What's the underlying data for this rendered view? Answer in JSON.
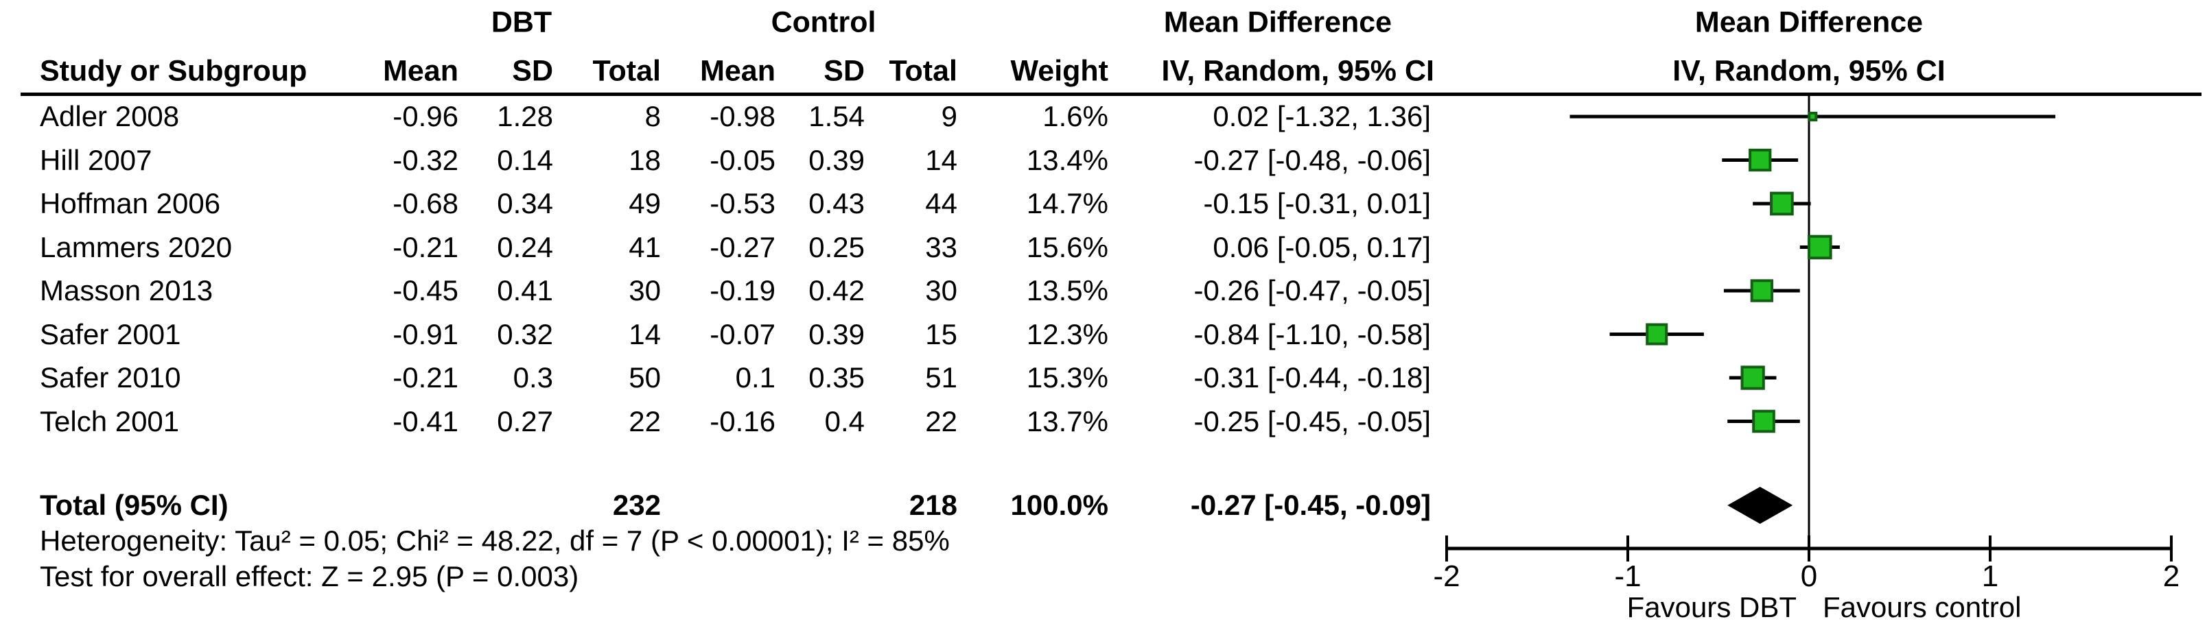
{
  "chart_data": {
    "type": "forest",
    "header": {
      "study_col": "Study or Subgroup",
      "group1": "DBT",
      "group2": "Control",
      "md_table": "Mean Difference",
      "md_plot": "Mean Difference",
      "model_table": "IV, Random, 95% CI",
      "model_plot": "IV, Random, 95% CI",
      "cols": [
        "Mean",
        "SD",
        "Total",
        "Mean",
        "SD",
        "Total",
        "Weight"
      ]
    },
    "studies": [
      {
        "name": "Adler 2008",
        "mean_dbt": "-0.96",
        "sd_dbt": "1.28",
        "total_dbt": "8",
        "mean_ctl": "-0.98",
        "sd_ctl": "1.54",
        "total_ctl": "9",
        "weight": "1.6%",
        "weight_pct": 1.6,
        "ci_text": "0.02 [-1.32, 1.36]",
        "est": 0.02,
        "lo": -1.32,
        "hi": 1.36
      },
      {
        "name": "Hill 2007",
        "mean_dbt": "-0.32",
        "sd_dbt": "0.14",
        "total_dbt": "18",
        "mean_ctl": "-0.05",
        "sd_ctl": "0.39",
        "total_ctl": "14",
        "weight": "13.4%",
        "weight_pct": 13.4,
        "ci_text": "-0.27 [-0.48, -0.06]",
        "est": -0.27,
        "lo": -0.48,
        "hi": -0.06
      },
      {
        "name": "Hoffman 2006",
        "mean_dbt": "-0.68",
        "sd_dbt": "0.34",
        "total_dbt": "49",
        "mean_ctl": "-0.53",
        "sd_ctl": "0.43",
        "total_ctl": "44",
        "weight": "14.7%",
        "weight_pct": 14.7,
        "ci_text": "-0.15 [-0.31, 0.01]",
        "est": -0.15,
        "lo": -0.31,
        "hi": 0.01
      },
      {
        "name": "Lammers 2020",
        "mean_dbt": "-0.21",
        "sd_dbt": "0.24",
        "total_dbt": "41",
        "mean_ctl": "-0.27",
        "sd_ctl": "0.25",
        "total_ctl": "33",
        "weight": "15.6%",
        "weight_pct": 15.6,
        "ci_text": "0.06 [-0.05, 0.17]",
        "est": 0.06,
        "lo": -0.05,
        "hi": 0.17
      },
      {
        "name": "Masson 2013",
        "mean_dbt": "-0.45",
        "sd_dbt": "0.41",
        "total_dbt": "30",
        "mean_ctl": "-0.19",
        "sd_ctl": "0.42",
        "total_ctl": "30",
        "weight": "13.5%",
        "weight_pct": 13.5,
        "ci_text": "-0.26 [-0.47, -0.05]",
        "est": -0.26,
        "lo": -0.47,
        "hi": -0.05
      },
      {
        "name": "Safer 2001",
        "mean_dbt": "-0.91",
        "sd_dbt": "0.32",
        "total_dbt": "14",
        "mean_ctl": "-0.07",
        "sd_ctl": "0.39",
        "total_ctl": "15",
        "weight": "12.3%",
        "weight_pct": 12.3,
        "ci_text": "-0.84 [-1.10, -0.58]",
        "est": -0.84,
        "lo": -1.1,
        "hi": -0.58
      },
      {
        "name": "Safer 2010",
        "mean_dbt": "-0.21",
        "sd_dbt": "0.3",
        "total_dbt": "50",
        "mean_ctl": "0.1",
        "sd_ctl": "0.35",
        "total_ctl": "51",
        "weight": "15.3%",
        "weight_pct": 15.3,
        "ci_text": "-0.31 [-0.44, -0.18]",
        "est": -0.31,
        "lo": -0.44,
        "hi": -0.18
      },
      {
        "name": "Telch 2001",
        "mean_dbt": "-0.41",
        "sd_dbt": "0.27",
        "total_dbt": "22",
        "mean_ctl": "-0.16",
        "sd_ctl": "0.4",
        "total_ctl": "22",
        "weight": "13.7%",
        "weight_pct": 13.7,
        "ci_text": "-0.25 [-0.45, -0.05]",
        "est": -0.25,
        "lo": -0.45,
        "hi": -0.05
      }
    ],
    "total": {
      "label": "Total (95% CI)",
      "total_dbt": "232",
      "total_ctl": "218",
      "weight": "100.0%",
      "ci_text": "-0.27 [-0.45, -0.09]",
      "est": -0.27,
      "lo": -0.45,
      "hi": -0.09
    },
    "footer": {
      "heterogeneity": "Heterogeneity: Tau² = 0.05; Chi² = 48.22, df = 7 (P < 0.00001); I² = 85%",
      "overall": "Test for overall effect: Z = 2.95 (P = 0.003)"
    },
    "axis": {
      "min": -2,
      "max": 2,
      "tick_labels": [
        "-2",
        "-1",
        "0",
        "1",
        "2"
      ],
      "tick_values": [
        -2,
        -1,
        0,
        1,
        2
      ],
      "favours_left": "Favours DBT",
      "favours_right": "Favours control"
    },
    "colors": {
      "square_fill": "#1FBE1F",
      "square_border": "#135F13",
      "diamond": "#000000",
      "ink": "#000000",
      "background": "#FFFFFF"
    }
  }
}
